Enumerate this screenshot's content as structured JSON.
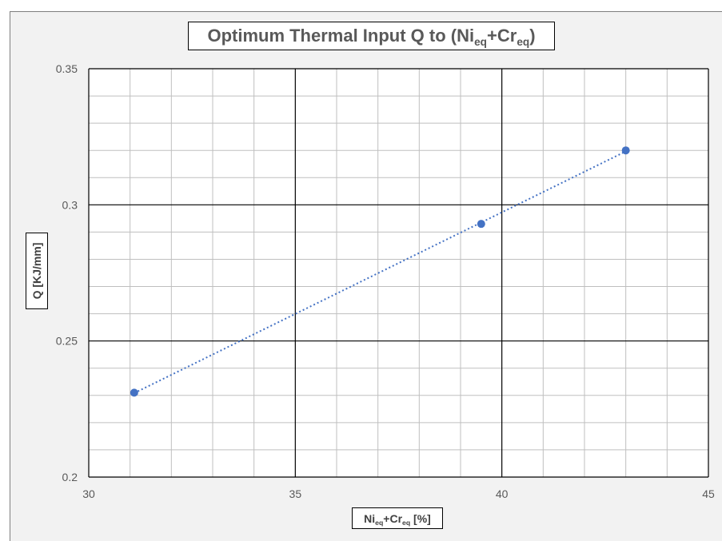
{
  "chart_data": {
    "type": "scatter",
    "title_main": "Optimum Thermal Input Q to (Ni",
    "title_sub1": "eq",
    "title_mid": "+Cr",
    "title_sub2": "eq",
    "title_end": ")",
    "xlabel_main": "Ni",
    "xlabel_sub1": "eq",
    "xlabel_mid": "+Cr",
    "xlabel_sub2": "eq",
    "xlabel_end": " [%]",
    "ylabel": "Q [KJ/mm]",
    "xlim": [
      30,
      45
    ],
    "ylim": [
      0.2,
      0.35
    ],
    "xticks": [
      "30",
      "35",
      "40",
      "45"
    ],
    "yticks": [
      "0.2",
      "0.25",
      "0.3",
      "0.35"
    ],
    "x_major": 5,
    "x_minor": 1,
    "y_major": 0.05,
    "y_minor": 0.01,
    "grid": true,
    "trendline": "linear, dotted",
    "series": [
      {
        "x": [
          31.1,
          39.5,
          43.0
        ],
        "y": [
          0.231,
          0.293,
          0.32
        ],
        "color": "#4472c4"
      }
    ]
  }
}
